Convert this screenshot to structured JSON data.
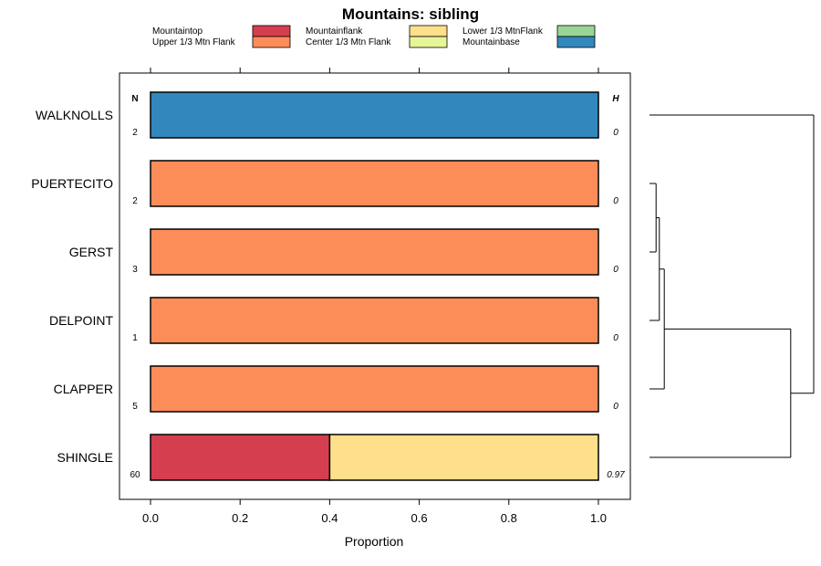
{
  "chart_data": {
    "type": "bar",
    "subtype": "stacked-horizontal-proportion",
    "title": "Mountains: sibling",
    "xlabel": "Proportion",
    "ylabel": "",
    "xlim": [
      0,
      1
    ],
    "xticks": [
      "0.0",
      "0.2",
      "0.4",
      "0.6",
      "0.8",
      "1.0"
    ],
    "xtick_values": [
      0,
      0.2,
      0.4,
      0.6,
      0.8,
      1.0
    ],
    "n_header": "N",
    "h_header": "H",
    "legend": [
      {
        "name": "Mountaintop",
        "color": "#d53e4f"
      },
      {
        "name": "Upper 1/3 Mtn Flank",
        "color": "#fc8d59"
      },
      {
        "name": "Mountainflank",
        "color": "#fee08b"
      },
      {
        "name": "Center 1/3 Mtn Flank",
        "color": "#e6f598"
      },
      {
        "name": "Lower 1/3 MtnFlank",
        "color": "#99d594"
      },
      {
        "name": "Mountainbase",
        "color": "#3288bd"
      }
    ],
    "categories": [
      "WALKNOLLS",
      "PUERTECITO",
      "GERST",
      "DELPOINT",
      "CLAPPER",
      "SHINGLE"
    ],
    "n": [
      "2",
      "2",
      "3",
      "1",
      "5",
      "60"
    ],
    "h": [
      "0",
      "0",
      "0",
      "0",
      "0",
      "0.97"
    ],
    "series": [
      {
        "name": "Mountaintop",
        "values": [
          0,
          0,
          0,
          0,
          0,
          0.4
        ]
      },
      {
        "name": "Upper 1/3 Mtn Flank",
        "values": [
          0,
          1,
          1,
          1,
          1,
          0
        ]
      },
      {
        "name": "Mountainflank",
        "values": [
          0,
          0,
          0,
          0,
          0,
          0.6
        ]
      },
      {
        "name": "Center 1/3 Mtn Flank",
        "values": [
          0,
          0,
          0,
          0,
          0,
          0
        ]
      },
      {
        "name": "Lower 1/3 MtnFlank",
        "values": [
          0,
          0,
          0,
          0,
          0,
          0
        ]
      },
      {
        "name": "Mountainbase",
        "values": [
          1,
          0,
          0,
          0,
          0,
          0
        ]
      }
    ],
    "dendrogram": {
      "leaf_order": [
        "WALKNOLLS",
        "PUERTECITO",
        "GERST",
        "DELPOINT",
        "CLAPPER",
        "SHINGLE"
      ],
      "merges": [
        {
          "left": "PUERTECITO",
          "right": "GERST",
          "height": 0.04
        },
        {
          "left": "m0",
          "right": "DELPOINT",
          "height": 0.06
        },
        {
          "left": "m1",
          "right": "CLAPPER",
          "height": 0.09
        },
        {
          "left": "m2",
          "right": "SHINGLE",
          "height": 0.86
        },
        {
          "left": "WALKNOLLS",
          "right": "m3",
          "height": 1.0
        }
      ]
    }
  }
}
